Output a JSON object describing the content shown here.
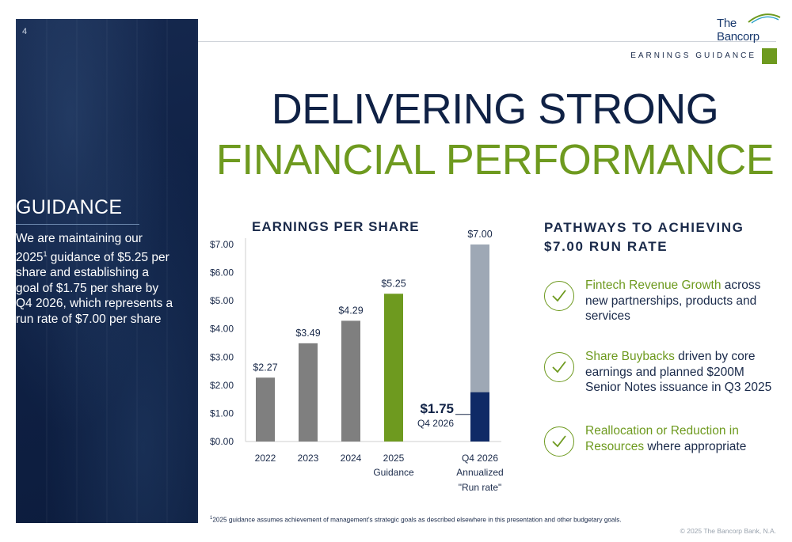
{
  "page": {
    "number": "4",
    "section_label": "EARNINGS GUIDANCE"
  },
  "logo": {
    "text": "The Bancorp"
  },
  "headline": {
    "line1": "DELIVERING STRONG",
    "line2": "FINANCIAL PERFORMANCE"
  },
  "guidance": {
    "title": "GUIDANCE",
    "text_before": "We are maintaining our 2025",
    "superscript": "1",
    "text_after": " guidance of $5.25 per share and establishing a goal of $1.75 per share by Q4 2026, which represents a run rate of $7.00 per share"
  },
  "chart_data": {
    "type": "bar",
    "title": "EARNINGS PER SHARE",
    "categories": [
      "2022",
      "2023",
      "2024",
      "2025",
      "Q4 2026"
    ],
    "category_sublabels": [
      "",
      "",
      "",
      "Guidance",
      "Annualized"
    ],
    "category_sublabels2": [
      "",
      "",
      "",
      "",
      "\"Run rate\""
    ],
    "values": [
      2.27,
      3.49,
      4.29,
      5.25,
      7.0
    ],
    "value_labels": [
      "$2.27",
      "$3.49",
      "$4.29",
      "$5.25",
      "$7.00"
    ],
    "bar_colors": [
      "#7f7f7f",
      "#7f7f7f",
      "#7f7f7f",
      "#6e9a1f",
      "#9ea8b5"
    ],
    "stacked_segment": {
      "category": "Q4 2026",
      "value": 1.75,
      "color": "#0f2a66",
      "label": "$1.75",
      "sublabel": "Q4 2026"
    },
    "y_ticks": [
      "$0.00",
      "$1.00",
      "$2.00",
      "$3.00",
      "$4.00",
      "$5.00",
      "$6.00",
      "$7.00"
    ],
    "ylim": [
      0,
      7
    ],
    "grid": false,
    "legend": "none"
  },
  "pathways": {
    "title_line1": "PATHWAYS TO ACHIEVING",
    "title_line2": "$7.00 RUN RATE",
    "items": [
      {
        "highlight": "Fintech Revenue Growth",
        "text": " across new partnerships, products and services",
        "icon": "check-circle-icon"
      },
      {
        "highlight": "Share Buybacks",
        "text": " driven by core earnings and planned $200M Senior Notes issuance in Q3 2025",
        "icon": "check-circle-icon"
      },
      {
        "highlight": "Reallocation or Reduction in Resources",
        "text": " where appropriate",
        "icon": "check-circle-icon"
      }
    ]
  },
  "footnote": {
    "superscript": "1",
    "text": "2025 guidance assumes achievement of management's strategic goals as described elsewhere in this presentation and other budgetary goals."
  },
  "copyright": "© 2025 The Bancorp Bank, N.A.",
  "colors": {
    "navy": "#0f2145",
    "green": "#6e9a1f",
    "gray_bar": "#7f7f7f",
    "runrate_bar": "#9ea8b5",
    "q4_bar": "#0f2a66"
  }
}
